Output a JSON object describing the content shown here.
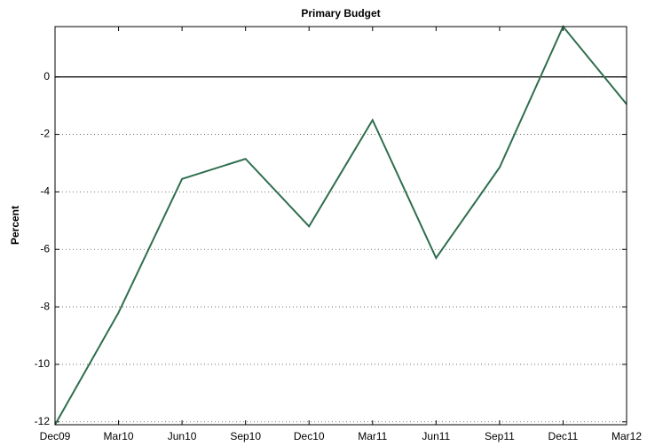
{
  "chart_data": {
    "type": "line",
    "title": "Primary Budget",
    "y_label": "Percent",
    "categories": [
      "Dec09",
      "Mar10",
      "Jun10",
      "Sep10",
      "Dec10",
      "Mar11",
      "Jun11",
      "Sep11",
      "Dec11",
      "Mar12"
    ],
    "series": [
      {
        "color": "#2f6e4f",
        "values": [
          -12.1,
          -8.2,
          -3.55,
          -2.85,
          -5.2,
          -1.5,
          -6.3,
          -3.15,
          1.75,
          -0.95
        ]
      }
    ],
    "ylim": [
      -12.1,
      1.75
    ],
    "yticks": [
      -12,
      -10,
      -8,
      -6,
      -4,
      -2,
      0
    ],
    "grid": true,
    "reference_line": 0
  }
}
